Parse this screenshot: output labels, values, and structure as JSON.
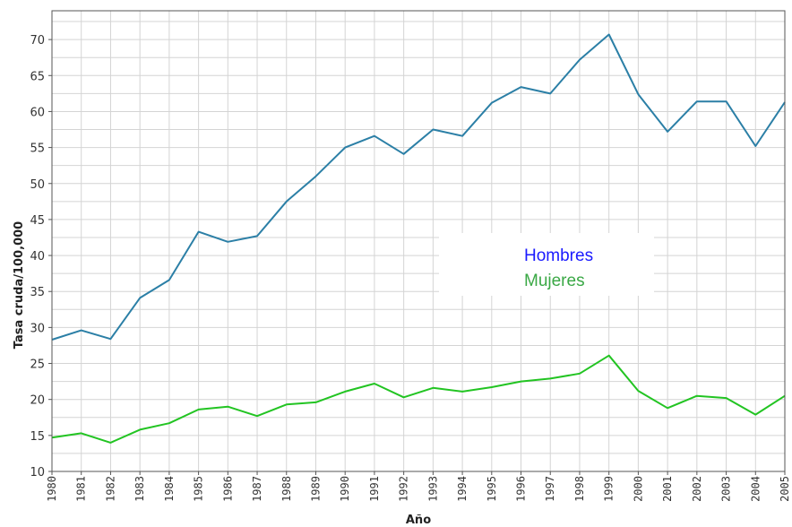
{
  "chart_data": {
    "type": "line",
    "title": "",
    "xlabel": "Año",
    "ylabel": "Tasa  cruda/100,000",
    "x": [
      "1980",
      "1981",
      "1982",
      "1983",
      "1984",
      "1985",
      "1986",
      "1987",
      "1988",
      "1989",
      "1990",
      "1991",
      "1992",
      "1993",
      "1994",
      "1995",
      "1996",
      "1997",
      "1998",
      "1999",
      "2000",
      "2001",
      "2002",
      "2003",
      "2004",
      "2005"
    ],
    "ylim": [
      10,
      74
    ],
    "yticks": [
      10,
      15,
      20,
      25,
      30,
      35,
      40,
      45,
      50,
      55,
      60,
      65,
      70
    ],
    "grid": true,
    "legend_position": "center-right",
    "series": [
      {
        "name": "Hombres",
        "color": "#2b7fa6",
        "legend_color": "#1a1aff",
        "values": [
          28.3,
          29.6,
          28.4,
          34.1,
          36.6,
          43.3,
          41.9,
          42.7,
          47.5,
          51.0,
          55.0,
          56.6,
          54.1,
          57.5,
          56.6,
          61.2,
          63.4,
          62.5,
          67.2,
          70.7,
          62.4,
          57.2,
          61.4,
          61.4,
          55.2,
          61.3
        ]
      },
      {
        "name": "Mujeres",
        "color": "#22c422",
        "legend_color": "#3aa845",
        "values": [
          14.7,
          15.3,
          14.0,
          15.8,
          16.7,
          18.6,
          19.0,
          17.7,
          19.3,
          19.6,
          21.1,
          22.2,
          20.3,
          21.6,
          21.1,
          21.7,
          22.5,
          22.9,
          23.6,
          26.1,
          21.2,
          18.8,
          20.5,
          20.2,
          17.9,
          20.5
        ]
      }
    ]
  }
}
